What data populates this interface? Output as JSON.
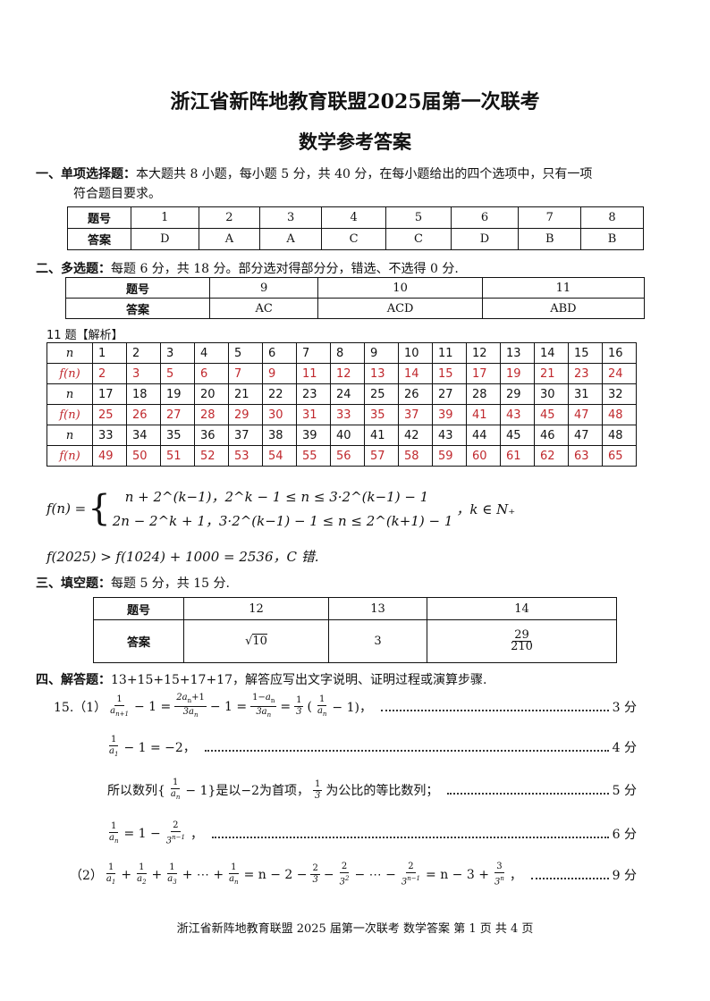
{
  "title": "浙江省新阵地教育联盟2025届第一次联考",
  "subtitle": "数学参考答案",
  "s1": {
    "head": "一、单项选择题：",
    "text": "本大题共 8 小题，每小题 5 分，共 40 分，在每小题给出的四个选项中，只有一项",
    "text2": "符合题目要求。",
    "hdr_q": "题号",
    "hdr_a": "答案",
    "questions": [
      "1",
      "2",
      "3",
      "4",
      "5",
      "6",
      "7",
      "8"
    ],
    "answers": [
      "D",
      "A",
      "A",
      "C",
      "C",
      "D",
      "B",
      "B"
    ]
  },
  "s2": {
    "head": "二、多选题：",
    "text": "每题 6 分，共 18 分。部分选对得部分分，错选、不选得 0 分.",
    "hdr_q": "题号",
    "hdr_a": "答案",
    "questions": [
      "9",
      "10",
      "11"
    ],
    "answers": [
      "AC",
      "ACD",
      "ABD"
    ]
  },
  "q11": {
    "label": "11 题【解析】",
    "n_label": "n",
    "f_label": "f(n)",
    "rows": [
      {
        "n": [
          "1",
          "2",
          "3",
          "4",
          "5",
          "6",
          "7",
          "8",
          "9",
          "10",
          "11",
          "12",
          "13",
          "14",
          "15",
          "16"
        ],
        "f": [
          "2",
          "3",
          "5",
          "6",
          "7",
          "9",
          "11",
          "12",
          "13",
          "14",
          "15",
          "17",
          "19",
          "21",
          "23",
          "24"
        ]
      },
      {
        "n": [
          "17",
          "18",
          "19",
          "20",
          "21",
          "22",
          "23",
          "24",
          "25",
          "26",
          "27",
          "28",
          "29",
          "30",
          "31",
          "32"
        ],
        "f": [
          "25",
          "26",
          "27",
          "28",
          "29",
          "30",
          "31",
          "33",
          "35",
          "37",
          "39",
          "41",
          "43",
          "45",
          "47",
          "48"
        ]
      },
      {
        "n": [
          "33",
          "34",
          "35",
          "36",
          "37",
          "38",
          "39",
          "40",
          "41",
          "42",
          "43",
          "44",
          "45",
          "46",
          "47",
          "48"
        ],
        "f": [
          "49",
          "50",
          "51",
          "52",
          "53",
          "54",
          "55",
          "56",
          "57",
          "58",
          "59",
          "60",
          "61",
          "62",
          "63",
          "65"
        ]
      }
    ],
    "formula_lhs": "f(n) =",
    "case1": "n + 2^(k−1)，2^k − 1 ≤ n ≤ 3·2^(k−1) − 1",
    "case2": "2n − 2^k + 1，3·2^(k−1) − 1 ≤ n ≤ 2^(k+1) − 1",
    "domain": "，k ∈ N₊",
    "conclusion": "f(2025) > f(1024) + 1000 = 2536，C 错."
  },
  "s3": {
    "head": "三、填空题：",
    "text": "每题 5 分，共 15 分.",
    "hdr_q": "题号",
    "hdr_a": "答案",
    "questions": [
      "12",
      "13",
      "14"
    ],
    "a12": "10",
    "a13": "3",
    "a14_num": "29",
    "a14_den": "210"
  },
  "s4": {
    "head": "四、解答题：",
    "text": "13+15+15+17+17，解答应写出文字说明、证明过程或演算步骤."
  },
  "q15": {
    "label": "15.（1）",
    "part2": "（2）",
    "lines": [
      {
        "tokens": [
          {
            "f": [
              "1",
              "a_{n+1}"
            ]
          },
          "− 1 =",
          {
            "f": [
              "2a_n+1",
              "3a_n"
            ]
          },
          "− 1 =",
          {
            "f": [
              "1−a_n",
              "3a_n"
            ]
          },
          "=",
          {
            "f": [
              "1",
              "3"
            ]
          },
          "(",
          {
            "f": [
              "1",
              "a_n"
            ]
          },
          "− 1)，"
        ],
        "score": "3 分"
      },
      {
        "tokens": [
          {
            "f": [
              "1",
              "a_1"
            ]
          },
          "− 1 = −2，"
        ],
        "score": "4 分"
      },
      {
        "tokens": [
          "所以数列{",
          {
            "f": [
              "1",
              "a_n"
            ]
          },
          "− 1}是以−2为首项，",
          {
            "f": [
              "1",
              "3"
            ]
          },
          "为公比的等比数列；"
        ],
        "score": "5 分"
      },
      {
        "tokens": [
          {
            "f": [
              "1",
              "a_n"
            ]
          },
          "= 1 −",
          {
            "f": [
              "2",
              "3^{n−1}"
            ]
          },
          "，"
        ],
        "score": "6 分"
      },
      {
        "tokens": [
          {
            "f": [
              "1",
              "a_1"
            ]
          },
          "+",
          {
            "f": [
              "1",
              "a_2"
            ]
          },
          "+",
          {
            "f": [
              "1",
              "a_3"
            ]
          },
          "+ ⋯ +",
          {
            "f": [
              "1",
              "a_n"
            ]
          },
          "= n − 2 −",
          {
            "f": [
              "2",
              "3"
            ]
          },
          "−",
          {
            "f": [
              "2",
              "3^2"
            ]
          },
          "− ⋯ −",
          {
            "f": [
              "2",
              "3^{n−1}"
            ]
          },
          "= n − 3 +",
          {
            "f": [
              "3",
              "3^n"
            ]
          },
          "，"
        ],
        "score": "9 分"
      }
    ]
  },
  "footer": "浙江省新阵地教育联盟 2025 届第一次联考  数学答案  第 1 页  共 4 页",
  "colors": {
    "red": "#c0282d"
  }
}
